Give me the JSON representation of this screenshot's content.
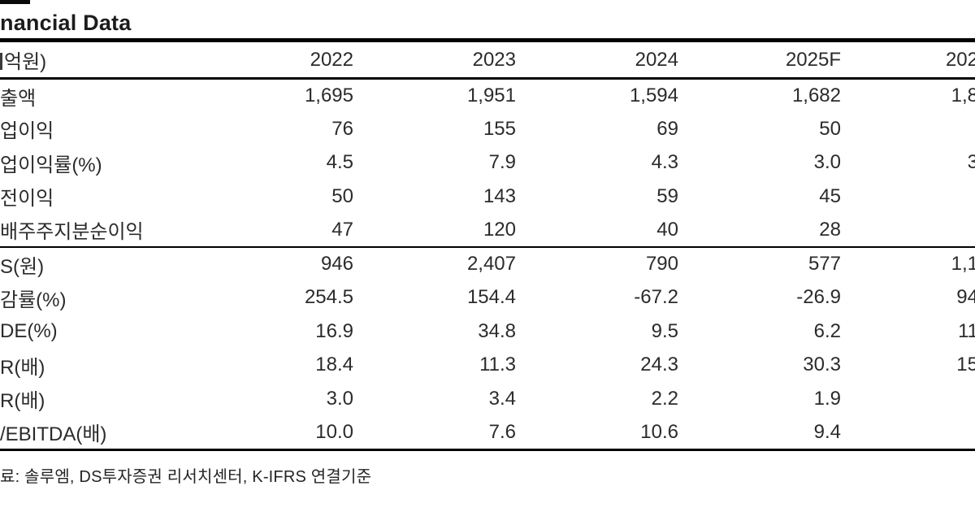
{
  "title": "nancial Data",
  "table": {
    "unit_label": "억원)",
    "columns": [
      "2022",
      "2023",
      "2024",
      "2025F",
      "202"
    ],
    "sections": [
      {
        "rows": [
          {
            "label": "출액",
            "values": [
              "1,695",
              "1,951",
              "1,594",
              "1,682",
              "1,8"
            ]
          },
          {
            "label": "업이익",
            "values": [
              "76",
              "155",
              "69",
              "50",
              ""
            ]
          },
          {
            "label": "업이익률(%)",
            "values": [
              "4.5",
              "7.9",
              "4.3",
              "3.0",
              "3"
            ]
          },
          {
            "label": "전이익",
            "values": [
              "50",
              "143",
              "59",
              "45",
              ""
            ]
          },
          {
            "label": "배주주지분순이익",
            "values": [
              "47",
              "120",
              "40",
              "28",
              ""
            ]
          }
        ]
      },
      {
        "rows": [
          {
            "label": "S(원)",
            "values": [
              "946",
              "2,407",
              "790",
              "577",
              "1,1"
            ]
          },
          {
            "label": "감률(%)",
            "values": [
              "254.5",
              "154.4",
              "-67.2",
              "-26.9",
              "94"
            ]
          },
          {
            "label": "DE(%)",
            "values": [
              "16.9",
              "34.8",
              "9.5",
              "6.2",
              "11"
            ]
          },
          {
            "label": "R(배)",
            "values": [
              "18.4",
              "11.3",
              "24.3",
              "30.3",
              "15"
            ]
          },
          {
            "label": "R(배)",
            "values": [
              "3.0",
              "3.4",
              "2.2",
              "1.9",
              ""
            ]
          },
          {
            "label": "/EBITDA(배)",
            "values": [
              "10.0",
              "7.6",
              "10.6",
              "9.4",
              ""
            ]
          }
        ]
      }
    ]
  },
  "footer": {
    "source": "료: 솔루엠, DS투자증권 리서치센터, K-IFRS 연결기준"
  }
}
